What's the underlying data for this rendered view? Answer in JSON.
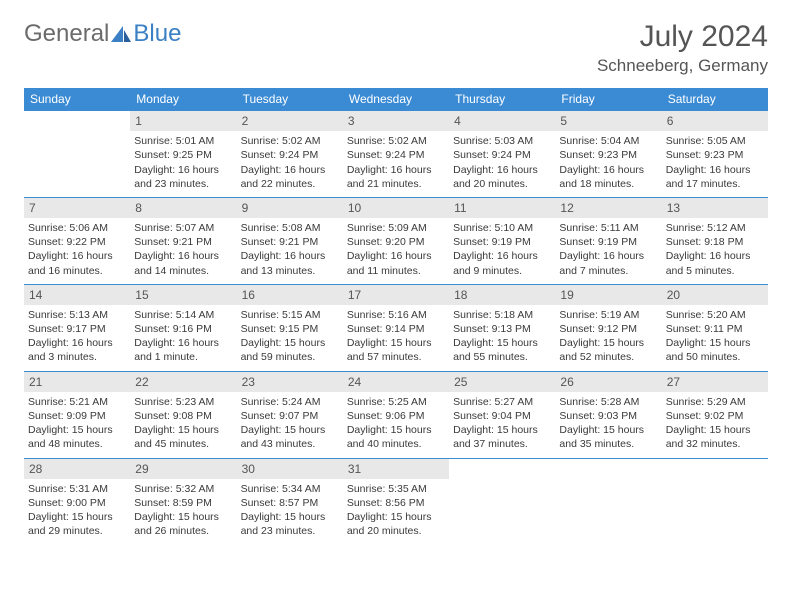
{
  "logo": {
    "text1": "General",
    "text2": "Blue"
  },
  "title": "July 2024",
  "location": "Schneeberg, Germany",
  "colors": {
    "header_bg": "#3b8bd4",
    "header_text": "#ffffff",
    "daynum_bg": "#e8e8e8",
    "row_border": "#3b8bd4",
    "logo_gray": "#6b6b6b",
    "logo_blue": "#3b7fc4"
  },
  "weekdays": [
    "Sunday",
    "Monday",
    "Tuesday",
    "Wednesday",
    "Thursday",
    "Friday",
    "Saturday"
  ],
  "weeks": [
    [
      {
        "empty": true
      },
      {
        "day": "1",
        "sunrise": "Sunrise: 5:01 AM",
        "sunset": "Sunset: 9:25 PM",
        "daylight1": "Daylight: 16 hours",
        "daylight2": "and 23 minutes."
      },
      {
        "day": "2",
        "sunrise": "Sunrise: 5:02 AM",
        "sunset": "Sunset: 9:24 PM",
        "daylight1": "Daylight: 16 hours",
        "daylight2": "and 22 minutes."
      },
      {
        "day": "3",
        "sunrise": "Sunrise: 5:02 AM",
        "sunset": "Sunset: 9:24 PM",
        "daylight1": "Daylight: 16 hours",
        "daylight2": "and 21 minutes."
      },
      {
        "day": "4",
        "sunrise": "Sunrise: 5:03 AM",
        "sunset": "Sunset: 9:24 PM",
        "daylight1": "Daylight: 16 hours",
        "daylight2": "and 20 minutes."
      },
      {
        "day": "5",
        "sunrise": "Sunrise: 5:04 AM",
        "sunset": "Sunset: 9:23 PM",
        "daylight1": "Daylight: 16 hours",
        "daylight2": "and 18 minutes."
      },
      {
        "day": "6",
        "sunrise": "Sunrise: 5:05 AM",
        "sunset": "Sunset: 9:23 PM",
        "daylight1": "Daylight: 16 hours",
        "daylight2": "and 17 minutes."
      }
    ],
    [
      {
        "day": "7",
        "sunrise": "Sunrise: 5:06 AM",
        "sunset": "Sunset: 9:22 PM",
        "daylight1": "Daylight: 16 hours",
        "daylight2": "and 16 minutes."
      },
      {
        "day": "8",
        "sunrise": "Sunrise: 5:07 AM",
        "sunset": "Sunset: 9:21 PM",
        "daylight1": "Daylight: 16 hours",
        "daylight2": "and 14 minutes."
      },
      {
        "day": "9",
        "sunrise": "Sunrise: 5:08 AM",
        "sunset": "Sunset: 9:21 PM",
        "daylight1": "Daylight: 16 hours",
        "daylight2": "and 13 minutes."
      },
      {
        "day": "10",
        "sunrise": "Sunrise: 5:09 AM",
        "sunset": "Sunset: 9:20 PM",
        "daylight1": "Daylight: 16 hours",
        "daylight2": "and 11 minutes."
      },
      {
        "day": "11",
        "sunrise": "Sunrise: 5:10 AM",
        "sunset": "Sunset: 9:19 PM",
        "daylight1": "Daylight: 16 hours",
        "daylight2": "and 9 minutes."
      },
      {
        "day": "12",
        "sunrise": "Sunrise: 5:11 AM",
        "sunset": "Sunset: 9:19 PM",
        "daylight1": "Daylight: 16 hours",
        "daylight2": "and 7 minutes."
      },
      {
        "day": "13",
        "sunrise": "Sunrise: 5:12 AM",
        "sunset": "Sunset: 9:18 PM",
        "daylight1": "Daylight: 16 hours",
        "daylight2": "and 5 minutes."
      }
    ],
    [
      {
        "day": "14",
        "sunrise": "Sunrise: 5:13 AM",
        "sunset": "Sunset: 9:17 PM",
        "daylight1": "Daylight: 16 hours",
        "daylight2": "and 3 minutes."
      },
      {
        "day": "15",
        "sunrise": "Sunrise: 5:14 AM",
        "sunset": "Sunset: 9:16 PM",
        "daylight1": "Daylight: 16 hours",
        "daylight2": "and 1 minute."
      },
      {
        "day": "16",
        "sunrise": "Sunrise: 5:15 AM",
        "sunset": "Sunset: 9:15 PM",
        "daylight1": "Daylight: 15 hours",
        "daylight2": "and 59 minutes."
      },
      {
        "day": "17",
        "sunrise": "Sunrise: 5:16 AM",
        "sunset": "Sunset: 9:14 PM",
        "daylight1": "Daylight: 15 hours",
        "daylight2": "and 57 minutes."
      },
      {
        "day": "18",
        "sunrise": "Sunrise: 5:18 AM",
        "sunset": "Sunset: 9:13 PM",
        "daylight1": "Daylight: 15 hours",
        "daylight2": "and 55 minutes."
      },
      {
        "day": "19",
        "sunrise": "Sunrise: 5:19 AM",
        "sunset": "Sunset: 9:12 PM",
        "daylight1": "Daylight: 15 hours",
        "daylight2": "and 52 minutes."
      },
      {
        "day": "20",
        "sunrise": "Sunrise: 5:20 AM",
        "sunset": "Sunset: 9:11 PM",
        "daylight1": "Daylight: 15 hours",
        "daylight2": "and 50 minutes."
      }
    ],
    [
      {
        "day": "21",
        "sunrise": "Sunrise: 5:21 AM",
        "sunset": "Sunset: 9:09 PM",
        "daylight1": "Daylight: 15 hours",
        "daylight2": "and 48 minutes."
      },
      {
        "day": "22",
        "sunrise": "Sunrise: 5:23 AM",
        "sunset": "Sunset: 9:08 PM",
        "daylight1": "Daylight: 15 hours",
        "daylight2": "and 45 minutes."
      },
      {
        "day": "23",
        "sunrise": "Sunrise: 5:24 AM",
        "sunset": "Sunset: 9:07 PM",
        "daylight1": "Daylight: 15 hours",
        "daylight2": "and 43 minutes."
      },
      {
        "day": "24",
        "sunrise": "Sunrise: 5:25 AM",
        "sunset": "Sunset: 9:06 PM",
        "daylight1": "Daylight: 15 hours",
        "daylight2": "and 40 minutes."
      },
      {
        "day": "25",
        "sunrise": "Sunrise: 5:27 AM",
        "sunset": "Sunset: 9:04 PM",
        "daylight1": "Daylight: 15 hours",
        "daylight2": "and 37 minutes."
      },
      {
        "day": "26",
        "sunrise": "Sunrise: 5:28 AM",
        "sunset": "Sunset: 9:03 PM",
        "daylight1": "Daylight: 15 hours",
        "daylight2": "and 35 minutes."
      },
      {
        "day": "27",
        "sunrise": "Sunrise: 5:29 AM",
        "sunset": "Sunset: 9:02 PM",
        "daylight1": "Daylight: 15 hours",
        "daylight2": "and 32 minutes."
      }
    ],
    [
      {
        "day": "28",
        "sunrise": "Sunrise: 5:31 AM",
        "sunset": "Sunset: 9:00 PM",
        "daylight1": "Daylight: 15 hours",
        "daylight2": "and 29 minutes."
      },
      {
        "day": "29",
        "sunrise": "Sunrise: 5:32 AM",
        "sunset": "Sunset: 8:59 PM",
        "daylight1": "Daylight: 15 hours",
        "daylight2": "and 26 minutes."
      },
      {
        "day": "30",
        "sunrise": "Sunrise: 5:34 AM",
        "sunset": "Sunset: 8:57 PM",
        "daylight1": "Daylight: 15 hours",
        "daylight2": "and 23 minutes."
      },
      {
        "day": "31",
        "sunrise": "Sunrise: 5:35 AM",
        "sunset": "Sunset: 8:56 PM",
        "daylight1": "Daylight: 15 hours",
        "daylight2": "and 20 minutes."
      },
      {
        "empty": true
      },
      {
        "empty": true
      },
      {
        "empty": true
      }
    ]
  ]
}
